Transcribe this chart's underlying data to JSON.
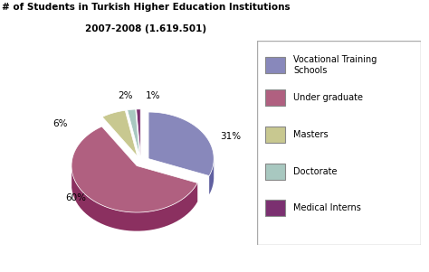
{
  "title_line1": "# of Students in Turkish Higher Education Institutions",
  "title_line2": "2007-2008 (1.619.501)",
  "legend_labels": [
    "Vocational Training\nSchools",
    "Under graduate",
    "Masters",
    "Doctorate",
    "Medical Interns"
  ],
  "values": [
    31,
    60,
    6,
    2,
    1
  ],
  "colors_top": [
    "#8888BB",
    "#B06080",
    "#C8C890",
    "#A8C8C0",
    "#7B3070"
  ],
  "colors_side": [
    "#6060A0",
    "#8B3060",
    "#A0A060",
    "#80A8A0",
    "#5B1050"
  ],
  "explode": [
    0.06,
    0.04,
    0.06,
    0.06,
    0.06
  ],
  "startangle": 90,
  "depth": 0.12,
  "background_color": "#ffffff",
  "pct_labels": [
    "31%",
    "60%",
    "6%",
    "2%",
    "1%"
  ]
}
